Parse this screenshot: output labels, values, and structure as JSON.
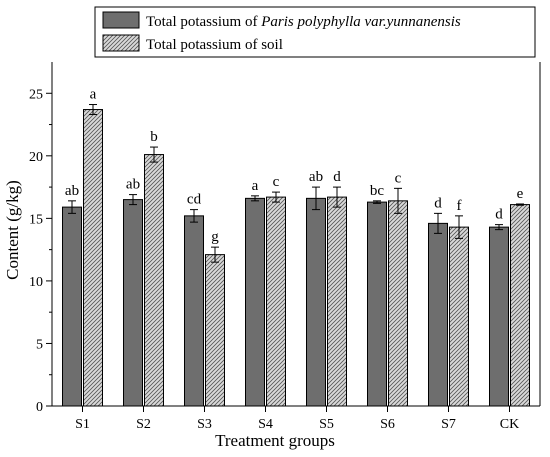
{
  "chart_data": {
    "type": "bar",
    "xlabel": "Treatment groups",
    "ylabel": "Content (g/kg)",
    "ylim": [
      0,
      27.5
    ],
    "yticks": [
      0,
      5,
      10,
      15,
      20,
      25
    ],
    "categories": [
      "S1",
      "S2",
      "S3",
      "S4",
      "S5",
      "S6",
      "S7",
      "CK"
    ],
    "legend_position": "top",
    "legend": [
      {
        "prefix": "Total potassium of ",
        "italic": "Paris polyphylla var.yunnanensis"
      },
      {
        "prefix": "Total potassium of soil",
        "italic": ""
      }
    ],
    "series": [
      {
        "values": [
          15.9,
          16.5,
          15.2,
          16.6,
          16.6,
          16.3,
          14.6,
          14.3
        ],
        "errors": [
          0.5,
          0.4,
          0.5,
          0.2,
          0.9,
          0.1,
          0.8,
          0.2
        ],
        "labels": [
          "ab",
          "ab",
          "cd",
          "a",
          "ab",
          "bc",
          "d",
          "d"
        ],
        "fill": "#6e6e6e",
        "pattern": "solid"
      },
      {
        "values": [
          23.7,
          20.1,
          12.1,
          16.7,
          16.7,
          16.4,
          14.3,
          16.1
        ],
        "errors": [
          0.4,
          0.6,
          0.6,
          0.4,
          0.8,
          1.0,
          0.9,
          0.05
        ],
        "labels": [
          "a",
          "b",
          "g",
          "c",
          "d",
          "c",
          "f",
          "e"
        ],
        "fill": "#cfcfcf",
        "pattern": "hatch"
      }
    ]
  }
}
